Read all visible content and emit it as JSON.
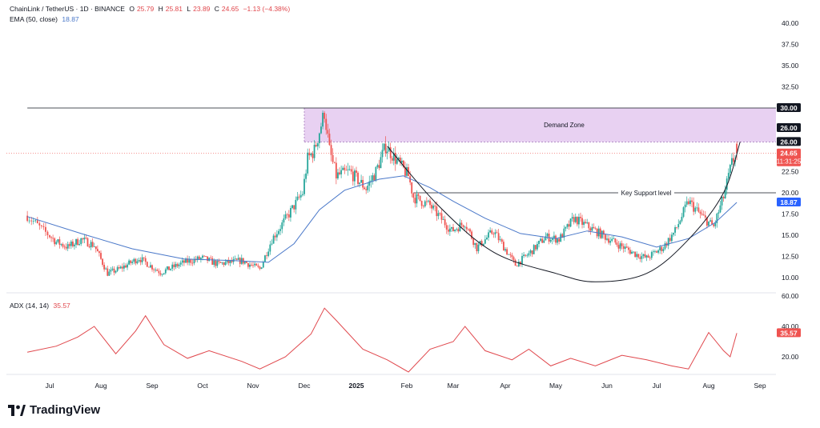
{
  "header": {
    "symbol": "ChainLink / TetherUS · 1D · BINANCE",
    "open_label": "O",
    "open": "25.79",
    "high_label": "H",
    "high": "25.81",
    "low_label": "L",
    "low": "23.89",
    "close_label": "C",
    "close": "24.65",
    "change": "−1.13 (−4.38%)",
    "ema_label": "EMA (50, close)",
    "ema_value": "18.87",
    "adx_label": "ADX (14, 14)",
    "adx_value": "35.57"
  },
  "brand": {
    "name": "TradingView",
    "logo_icon": "tradingview-logo-icon"
  },
  "colors": {
    "up": "#26a69a",
    "down": "#ef5350",
    "ema": "#4a78c9",
    "adx": "#e0474c",
    "zone": "#e4c9f0",
    "price_badge": "#ef5350",
    "ema_badge": "#2962ff"
  },
  "chart_data": [
    {
      "type": "candlestick",
      "title": "ChainLink / TetherUS · 1D · BINANCE",
      "x_ticks": [
        "Jul",
        "Aug",
        "Sep",
        "Oct",
        "Nov",
        "Dec",
        "2025",
        "Feb",
        "Mar",
        "Apr",
        "May",
        "Jun",
        "Jul",
        "Aug",
        "Sep"
      ],
      "y_ticks": [
        "40.00",
        "37.50",
        "35.00",
        "32.50",
        "30.00",
        "26.00",
        "22.50",
        "20.00",
        "17.50",
        "15.00",
        "12.50",
        "10.00"
      ],
      "ylim": [
        8.5,
        41
      ],
      "grid": false,
      "price_anchors": [
        [
          "2024-06-20",
          17.3
        ],
        [
          "2024-06-28",
          15.5
        ],
        [
          "2024-07-05",
          14.2
        ],
        [
          "2024-07-12",
          13.6
        ],
        [
          "2024-07-20",
          14.5
        ],
        [
          "2024-07-28",
          13.8
        ],
        [
          "2024-08-05",
          10.5
        ],
        [
          "2024-08-12",
          11.0
        ],
        [
          "2024-08-24",
          12.3
        ],
        [
          "2024-09-06",
          10.6
        ],
        [
          "2024-09-20",
          11.8
        ],
        [
          "2024-10-01",
          12.3
        ],
        [
          "2024-10-10",
          11.6
        ],
        [
          "2024-10-25",
          12.0
        ],
        [
          "2024-11-05",
          11.0
        ],
        [
          "2024-11-12",
          14.5
        ],
        [
          "2024-11-22",
          17.5
        ],
        [
          "2024-11-30",
          20.0
        ],
        [
          "2024-12-03",
          24.0
        ],
        [
          "2024-12-07",
          25.0
        ],
        [
          "2024-12-13",
          29.5
        ],
        [
          "2024-12-16",
          25.0
        ],
        [
          "2024-12-20",
          22.0
        ],
        [
          "2024-12-28",
          22.5
        ],
        [
          "2025-01-07",
          20.5
        ],
        [
          "2025-01-13",
          22.5
        ],
        [
          "2025-01-19",
          25.5
        ],
        [
          "2025-01-25",
          24.0
        ],
        [
          "2025-02-02",
          22.0
        ],
        [
          "2025-02-05",
          19.5
        ],
        [
          "2025-02-15",
          18.5
        ],
        [
          "2025-02-28",
          15.5
        ],
        [
          "2025-03-08",
          16.5
        ],
        [
          "2025-03-15",
          13.5
        ],
        [
          "2025-03-25",
          15.5
        ],
        [
          "2025-04-07",
          11.5
        ],
        [
          "2025-04-15",
          12.8
        ],
        [
          "2025-04-25",
          14.8
        ],
        [
          "2025-05-03",
          14.5
        ],
        [
          "2025-05-12",
          17.0
        ],
        [
          "2025-05-25",
          15.5
        ],
        [
          "2025-06-07",
          14.0
        ],
        [
          "2025-06-18",
          12.8
        ],
        [
          "2025-06-25",
          12.3
        ],
        [
          "2025-07-05",
          13.6
        ],
        [
          "2025-07-12",
          15.5
        ],
        [
          "2025-07-20",
          19.0
        ],
        [
          "2025-07-28",
          17.2
        ],
        [
          "2025-08-04",
          16.0
        ],
        [
          "2025-08-10",
          19.5
        ],
        [
          "2025-08-15",
          23.5
        ],
        [
          "2025-08-18",
          24.65
        ]
      ],
      "ema_anchors": [
        [
          "2024-06-20",
          17.2
        ],
        [
          "2024-07-20",
          15.2
        ],
        [
          "2024-08-20",
          13.4
        ],
        [
          "2024-09-20",
          12.2
        ],
        [
          "2024-10-20",
          12.0
        ],
        [
          "2024-11-10",
          11.8
        ],
        [
          "2024-11-25",
          14.0
        ],
        [
          "2024-12-10",
          18.0
        ],
        [
          "2024-12-25",
          20.3
        ],
        [
          "2025-01-15",
          21.6
        ],
        [
          "2025-01-30",
          22.0
        ],
        [
          "2025-02-15",
          20.6
        ],
        [
          "2025-03-01",
          19.0
        ],
        [
          "2025-03-20",
          17.0
        ],
        [
          "2025-04-10",
          15.2
        ],
        [
          "2025-05-01",
          14.6
        ],
        [
          "2025-05-20",
          15.5
        ],
        [
          "2025-06-10",
          14.8
        ],
        [
          "2025-07-01",
          13.6
        ],
        [
          "2025-07-20",
          14.6
        ],
        [
          "2025-08-05",
          16.5
        ],
        [
          "2025-08-18",
          18.87
        ]
      ],
      "annotations": [
        {
          "kind": "zone",
          "label": "Demand Zone",
          "from": "2024-12-01",
          "to": "2025-09-15",
          "y_low": 26.0,
          "y_high": 30.0
        },
        {
          "kind": "hline",
          "y": 30.0,
          "from": "2024-06-20",
          "to": "2025-09-15"
        },
        {
          "kind": "hline",
          "label": "Key Support level",
          "y": 20.0,
          "from": "2025-02-05",
          "to": "2025-09-15"
        },
        {
          "kind": "curve",
          "points": [
            [
              "2025-01-20",
              25.5
            ],
            [
              "2025-02-20",
              18.5
            ],
            [
              "2025-03-25",
              13.0
            ],
            [
              "2025-05-01",
              10.5
            ],
            [
              "2025-05-25",
              9.5
            ],
            [
              "2025-06-25",
              10.5
            ],
            [
              "2025-07-20",
              14.5
            ],
            [
              "2025-08-10",
              20.0
            ],
            [
              "2025-08-20",
              26.0
            ]
          ]
        }
      ],
      "price_labels": [
        {
          "value": "30.00",
          "style": "dark"
        },
        {
          "value": "26.00",
          "style": "dark"
        },
        {
          "value": "26.00",
          "style": "dark"
        },
        {
          "value": "24.65",
          "sub": "11:31:25",
          "style": "price"
        },
        {
          "value": "18.87",
          "style": "ema"
        }
      ]
    },
    {
      "type": "line",
      "title": "ADX (14, 14)",
      "y_ticks": [
        "60.00",
        "40.00",
        "20.00"
      ],
      "ylim": [
        0,
        60
      ],
      "series": [
        {
          "name": "ADX (14, 14)",
          "points": [
            [
              "2024-06-20",
              23
            ],
            [
              "2024-07-05",
              27
            ],
            [
              "2024-07-18",
              33
            ],
            [
              "2024-07-28",
              40
            ],
            [
              "2024-08-10",
              22
            ],
            [
              "2024-08-22",
              37
            ],
            [
              "2024-08-28",
              47
            ],
            [
              "2024-09-08",
              28
            ],
            [
              "2024-09-22",
              19
            ],
            [
              "2024-10-05",
              24
            ],
            [
              "2024-10-25",
              17
            ],
            [
              "2024-11-05",
              12
            ],
            [
              "2024-11-20",
              20
            ],
            [
              "2024-12-05",
              35
            ],
            [
              "2024-12-13",
              52
            ],
            [
              "2024-12-20",
              44
            ],
            [
              "2025-01-05",
              25
            ],
            [
              "2025-01-20",
              18
            ],
            [
              "2025-02-02",
              10
            ],
            [
              "2025-02-15",
              25
            ],
            [
              "2025-03-01",
              30
            ],
            [
              "2025-03-08",
              40
            ],
            [
              "2025-03-20",
              24
            ],
            [
              "2025-04-05",
              18
            ],
            [
              "2025-04-15",
              25
            ],
            [
              "2025-04-28",
              14
            ],
            [
              "2025-05-10",
              19
            ],
            [
              "2025-05-25",
              14
            ],
            [
              "2025-06-10",
              21
            ],
            [
              "2025-06-25",
              18
            ],
            [
              "2025-07-10",
              14
            ],
            [
              "2025-07-20",
              12
            ],
            [
              "2025-08-01",
              36
            ],
            [
              "2025-08-10",
              24
            ],
            [
              "2025-08-14",
              20
            ],
            [
              "2025-08-18",
              35.57
            ]
          ]
        }
      ],
      "price_labels": [
        {
          "value": "35.57",
          "style": "price"
        }
      ]
    }
  ]
}
